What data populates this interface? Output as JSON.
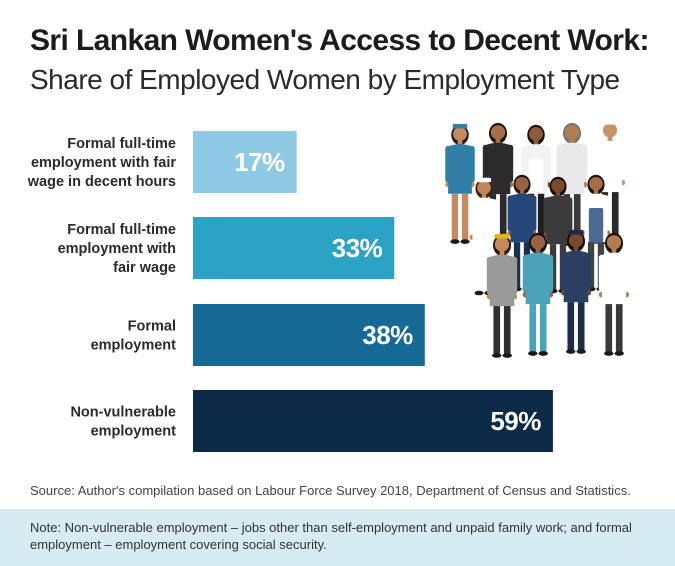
{
  "header": {
    "title": "Sri Lankan Women's Access to Decent Work:",
    "subtitle": "Share of Employed Women by Employment Type"
  },
  "chart_data": {
    "type": "bar",
    "orientation": "horizontal",
    "title": "Sri Lankan Women's Access to Decent Work:",
    "subtitle": "Share of Employed Women by Employment Type",
    "categories": [
      [
        "Formal full-time",
        "employment with fair",
        "wage in decent hours"
      ],
      [
        "Formal full-time",
        "employment with",
        "fair wage"
      ],
      [
        "Formal",
        "employment"
      ],
      [
        "Non-vulnerable",
        "employment"
      ]
    ],
    "values": [
      17,
      33,
      38,
      59
    ],
    "value_labels": [
      "17%",
      "33%",
      "38%",
      "59%"
    ],
    "colors": [
      "#8ecae6",
      "#2aa3c4",
      "#156994",
      "#0b2a48"
    ],
    "xlim": [
      0,
      100
    ],
    "grid": false,
    "legend": "none"
  },
  "illustration": {
    "icon": "women-workers-illustration"
  },
  "footer": {
    "source": "Source: Author's compilation based on Labour Force Survey 2018, Department of Census and Statistics.",
    "note": "Note: Non-vulnerable employment – jobs other than self-employment and unpaid family work; and formal employment – employment covering social security."
  }
}
